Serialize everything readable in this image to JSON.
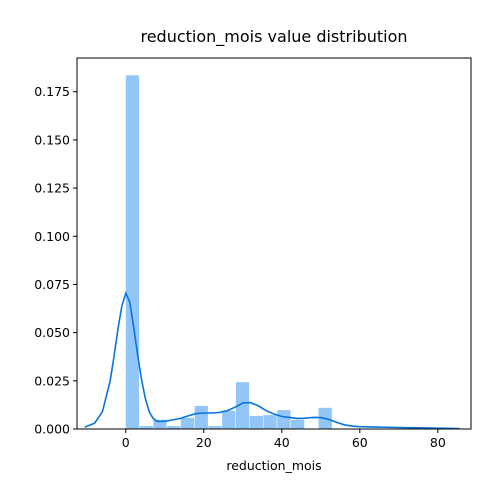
{
  "chart_data": {
    "type": "bar",
    "title": "reduction_mois value distribution",
    "xlabel": "reduction_mois",
    "ylabel": "",
    "xlim": [
      -12.5,
      88.5
    ],
    "ylim": [
      0,
      0.1925
    ],
    "x_ticks": [
      0,
      20,
      40,
      60,
      80
    ],
    "y_ticks": [
      0.0,
      0.025,
      0.05,
      0.075,
      0.1,
      0.125,
      0.15,
      0.175
    ],
    "y_tick_labels": [
      "0.000",
      "0.025",
      "0.050",
      "0.075",
      "0.100",
      "0.125",
      "0.150",
      "0.175"
    ],
    "grid": false,
    "histogram": {
      "name": "histogram",
      "color": "#92c6f6",
      "bin_width": 3.53,
      "bin_starts": [
        0,
        3.53,
        7.06,
        10.59,
        14.12,
        17.65,
        21.18,
        24.71,
        28.24,
        31.77,
        35.3,
        38.83,
        42.36,
        45.89,
        49.42
      ],
      "values": [
        0.1835,
        0.0015,
        0.0048,
        0.0015,
        0.0058,
        0.012,
        0.0015,
        0.0095,
        0.0243,
        0.0068,
        0.0072,
        0.0098,
        0.0048,
        0.0,
        0.011
      ]
    },
    "kde": {
      "name": "kde",
      "color": "#0874e0",
      "x": [
        -10.5,
        -8,
        -6,
        -4,
        -3,
        -2,
        -1,
        0,
        1,
        2,
        3,
        4,
        5,
        6,
        7,
        8,
        10,
        12,
        14,
        16,
        18,
        20,
        22,
        24,
        26,
        28,
        30,
        32,
        34,
        36,
        38,
        40,
        42,
        44,
        46,
        48,
        50,
        52,
        54,
        56,
        58,
        60,
        65,
        70,
        75,
        80,
        85.5
      ],
      "y": [
        0.001,
        0.003,
        0.009,
        0.025,
        0.038,
        0.052,
        0.064,
        0.0705,
        0.066,
        0.053,
        0.039,
        0.026,
        0.016,
        0.009,
        0.0055,
        0.004,
        0.004,
        0.0047,
        0.0055,
        0.0068,
        0.008,
        0.0083,
        0.0083,
        0.0086,
        0.0095,
        0.0113,
        0.0135,
        0.0137,
        0.012,
        0.0095,
        0.0078,
        0.0065,
        0.006,
        0.0055,
        0.0056,
        0.006,
        0.0059,
        0.005,
        0.0035,
        0.0022,
        0.0015,
        0.0012,
        0.001,
        0.0008,
        0.0006,
        0.0004,
        0.0002
      ]
    }
  }
}
